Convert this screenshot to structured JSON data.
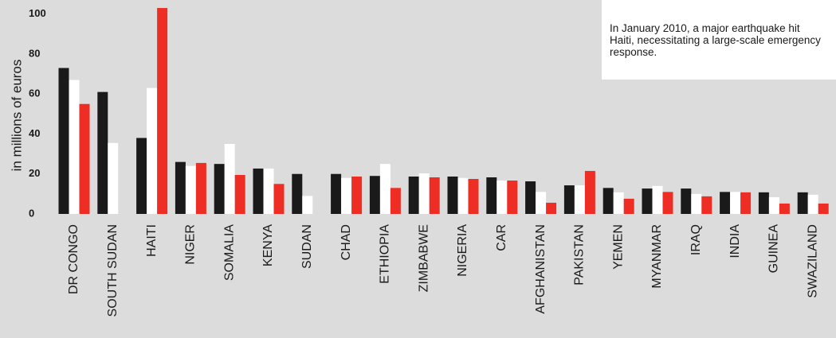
{
  "chart_data": {
    "type": "bar",
    "ylabel": "in millions of euros",
    "annotation": "In January 2010, a major earthquake hit Haiti, necessitating a large-scale emergency response.",
    "categories": [
      "DR CONGO",
      "SOUTH SUDAN",
      "HAITI",
      "NIGER",
      "SOMALIA",
      "KENYA",
      "SUDAN",
      "CHAD",
      "ETHIOPIA",
      "ZIMBABWE",
      "NIGERIA",
      "CAR",
      "AFGHANISTAN",
      "PAKISTAN",
      "YEMEN",
      "MYANMAR",
      "IRAQ",
      "INDIA",
      "GUINEA",
      "SWAZILAND"
    ],
    "series": [
      {
        "color": "#1a1a1a",
        "values": [
          73,
          61,
          38,
          26,
          25,
          22.7,
          20,
          20,
          19,
          18.7,
          18.7,
          18.3,
          16.3,
          14.3,
          13,
          12.7,
          12.7,
          11,
          10.8,
          10.8
        ]
      },
      {
        "color": "#ffffff",
        "values": [
          67,
          35.5,
          63,
          24,
          35,
          22.7,
          9,
          18,
          25,
          20.3,
          18,
          16.7,
          11,
          14.3,
          10.8,
          14,
          10,
          11,
          8.4,
          9.6
        ]
      },
      {
        "color": "#ee2e24",
        "values": [
          55,
          0,
          103,
          25.5,
          19.5,
          15,
          0,
          18.7,
          13,
          18.3,
          17.5,
          16.7,
          5.6,
          21.5,
          7.6,
          11,
          8.8,
          10.8,
          5.2,
          5.2
        ]
      }
    ],
    "ylim": [
      0,
      107
    ],
    "yticks": [
      0,
      20,
      40,
      60,
      80,
      100
    ]
  }
}
